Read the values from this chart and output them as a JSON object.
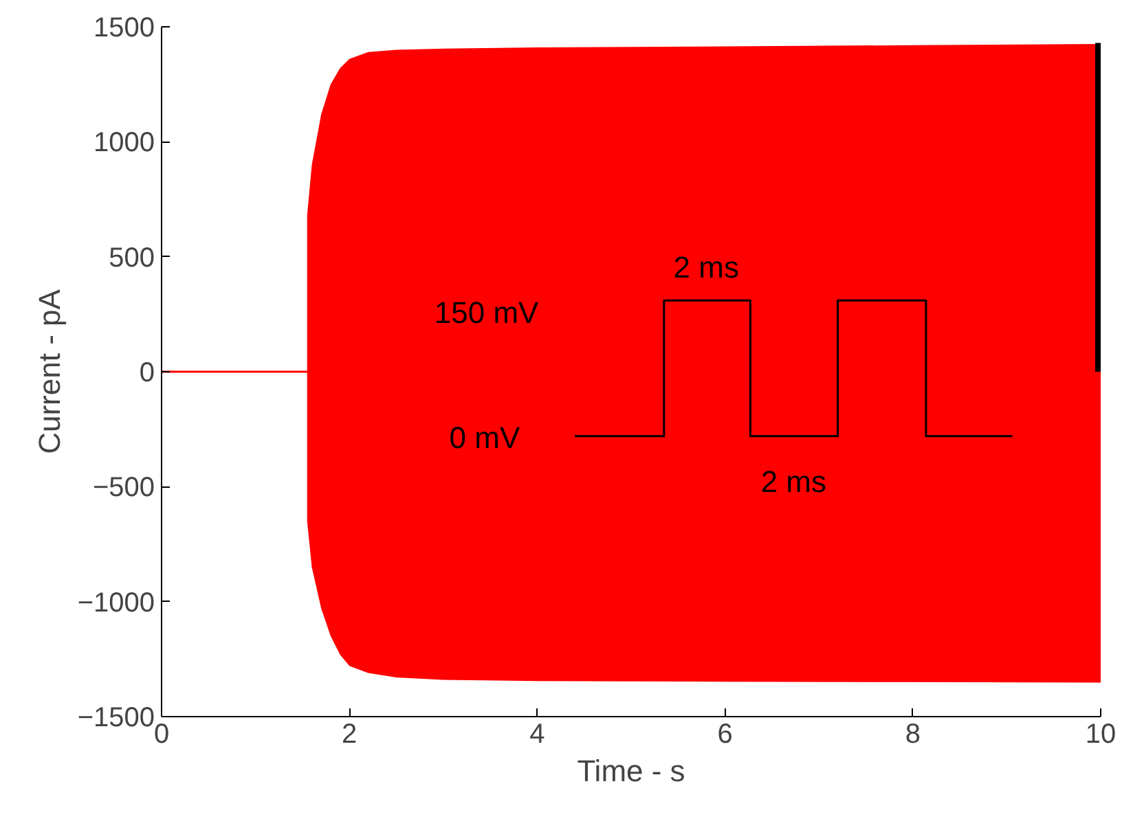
{
  "chart_data": {
    "type": "line",
    "xlabel": "Time - s",
    "ylabel": "Current - pA",
    "xlim": [
      0,
      10
    ],
    "xticks": [
      0,
      2,
      4,
      6,
      8,
      10
    ],
    "ylim": [
      -1500,
      1500
    ],
    "yticks": [
      -1500,
      -1000,
      -500,
      0,
      500,
      1000,
      1500
    ],
    "grid": false,
    "marker": "none",
    "line_style": "solid",
    "series": [
      {
        "color": "#ff0000",
        "x": [
          0,
          1.55,
          1.6,
          1.7,
          1.8,
          1.9,
          2.0,
          2.2,
          2.5,
          3,
          4,
          6,
          8,
          10
        ],
        "values": [
          0,
          0,
          0,
          0,
          0,
          0,
          0,
          0,
          0,
          0,
          0,
          0,
          0,
          0
        ],
        "upper": [
          null,
          680,
          900,
          1120,
          1250,
          1320,
          1360,
          1390,
          1400,
          1405,
          1410,
          1415,
          1420,
          1425
        ],
        "lower": [
          null,
          -650,
          -850,
          -1030,
          -1150,
          -1230,
          -1280,
          -1310,
          -1330,
          -1340,
          -1345,
          -1348,
          -1350,
          -1352
        ]
      },
      {
        "color": "#000000",
        "x": [
          10,
          10
        ],
        "values": [
          0,
          1430
        ]
      },
      {
        "color": "#000000",
        "x": [
          4.4,
          5.35,
          5.35,
          6.27,
          6.27,
          7.2,
          7.2,
          8.14,
          8.14,
          9.06
        ],
        "values": [
          -280,
          -280,
          310,
          310,
          -280,
          -280,
          310,
          310,
          -280,
          -280
        ]
      }
    ],
    "annotations": [
      "150 mV",
      "0 mV",
      "2 ms",
      "2 ms"
    ]
  }
}
